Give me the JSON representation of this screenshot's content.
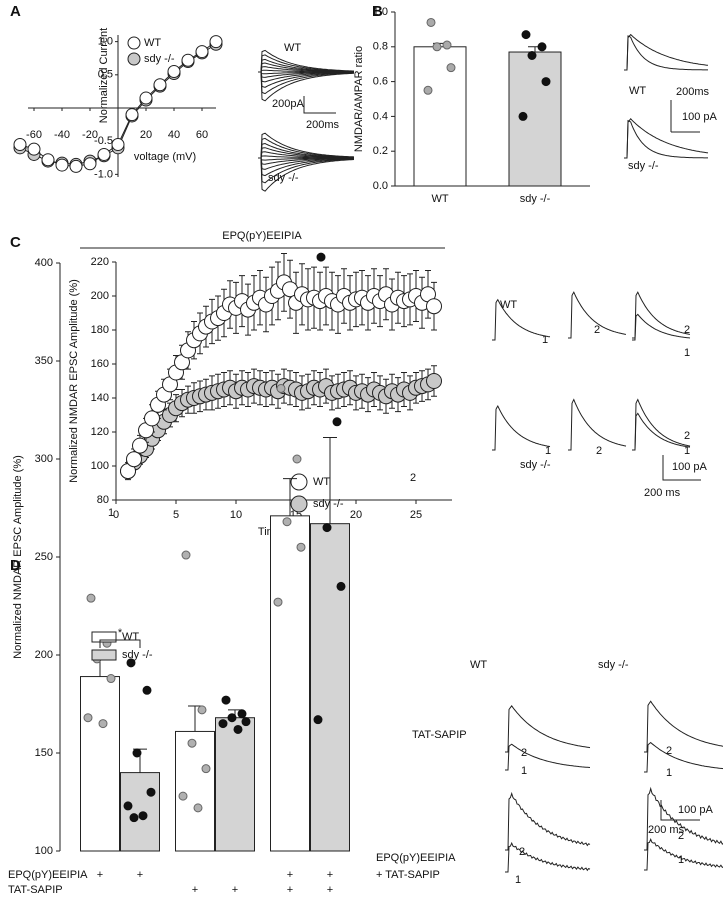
{
  "panel_labels": [
    "A",
    "B",
    "C",
    "D"
  ],
  "chart_data": [
    {
      "type": "line",
      "x_label": "voltage (mV)",
      "y_label": "Normalized Current",
      "x": [
        -70,
        -60,
        -50,
        -40,
        -30,
        -20,
        -10,
        0,
        10,
        20,
        30,
        40,
        50,
        60,
        70
      ],
      "series": [
        {
          "name": "WT",
          "color": "#ffffff",
          "values": [
            -0.55,
            -0.62,
            -0.78,
            -0.86,
            -0.88,
            -0.84,
            -0.7,
            -0.55,
            -0.1,
            0.15,
            0.35,
            0.55,
            0.72,
            0.85,
            1.0
          ]
        },
        {
          "name": "sdy -/-",
          "color": "#c8c8c8",
          "values": [
            -0.6,
            -0.7,
            -0.8,
            -0.83,
            -0.85,
            -0.8,
            -0.72,
            -0.6,
            -0.12,
            0.12,
            0.33,
            0.52,
            0.7,
            0.83,
            0.96
          ]
        }
      ],
      "xlim": [
        -70,
        70
      ],
      "ylim": [
        -1.1,
        1.1
      ],
      "xticks": [
        -60,
        -40,
        -20,
        20,
        40,
        60
      ],
      "yticks": [
        {
          "value": -1,
          "label": "-1.0"
        },
        -0.5,
        0.5,
        {
          "value": 1,
          "label": "1.0"
        }
      ]
    },
    {
      "type": "bar",
      "y_label": "NMDAR/AMPAR ratio",
      "categories": [
        "WT",
        "sdy -/-"
      ],
      "values": [
        0.8,
        0.77
      ],
      "errors": [
        0.02,
        0.03
      ],
      "colors": [
        "#ffffff",
        "#d4d4d4"
      ],
      "points": [
        [
          0.94,
          0.81,
          0.8,
          0.68,
          0.55
        ],
        [
          0.87,
          0.8,
          0.75,
          0.6,
          0.4
        ]
      ],
      "point_colors": [
        "#aaaaaa",
        "#111111"
      ],
      "ylim": [
        0,
        1
      ],
      "yticks": [
        {
          "value": 0,
          "label": "0.0"
        },
        0.2,
        0.4,
        0.6,
        0.8,
        {
          "value": 1,
          "label": "1.0"
        }
      ]
    },
    {
      "type": "scatter",
      "title": "EPQ(pY)EEIPIA",
      "x_label": "Time (min)",
      "y_label": "Normalized NMDAR EPSC Amplitude (%)",
      "annotations": [
        "1",
        "2"
      ],
      "x": [
        1,
        1.5,
        2,
        2.5,
        3,
        3.5,
        4,
        4.5,
        5,
        5.5,
        6,
        6.5,
        7,
        7.5,
        8,
        8.5,
        9,
        9.5,
        10,
        10.5,
        11,
        11.5,
        12,
        12.5,
        13,
        13.5,
        14,
        14.5,
        15,
        15.5,
        16,
        16.5,
        17,
        17.5,
        18,
        18.5,
        19,
        19.5,
        20,
        20.5,
        21,
        21.5,
        22,
        22.5,
        23,
        23.5,
        24,
        24.5,
        25,
        25.5,
        26,
        26.5
      ],
      "series": [
        {
          "name": "WT",
          "color": "#ffffff",
          "values": [
            97,
            104,
            112,
            121,
            128,
            136,
            142,
            148,
            155,
            161,
            168,
            174,
            178,
            182,
            185,
            187,
            190,
            195,
            193,
            197,
            192,
            196,
            199,
            195,
            200,
            203,
            208,
            204,
            196,
            201,
            198,
            199,
            197,
            200,
            197,
            195,
            200,
            196,
            198,
            199,
            196,
            200,
            197,
            201,
            195,
            199,
            197,
            198,
            200,
            196,
            201,
            194
          ],
          "errors": [
            5,
            6,
            6,
            7,
            8,
            8,
            9,
            9,
            10,
            10,
            11,
            11,
            12,
            12,
            13,
            13,
            14,
            14,
            15,
            15,
            15,
            16,
            16,
            16,
            17,
            17,
            17,
            17,
            18,
            18,
            18,
            18,
            17,
            17,
            17,
            17,
            16,
            16,
            16,
            16,
            16,
            16,
            15,
            15,
            15,
            15,
            15,
            15,
            15,
            15,
            14,
            14
          ]
        },
        {
          "name": "sdy -/-",
          "color": "#c8c8c8",
          "values": [
            97,
            102,
            106,
            110,
            116,
            121,
            126,
            130,
            134,
            137,
            139,
            140,
            141,
            142,
            143,
            144,
            145,
            146,
            144,
            146,
            145,
            147,
            146,
            145,
            146,
            144,
            147,
            146,
            145,
            143,
            144,
            146,
            145,
            147,
            143,
            144,
            145,
            146,
            143,
            144,
            142,
            145,
            143,
            141,
            144,
            142,
            145,
            143,
            146,
            147,
            148,
            150
          ],
          "errors": [
            4,
            4,
            5,
            5,
            6,
            6,
            7,
            7,
            8,
            8,
            8,
            9,
            9,
            9,
            10,
            10,
            10,
            10,
            10,
            10,
            10,
            10,
            10,
            10,
            10,
            10,
            10,
            10,
            10,
            10,
            10,
            10,
            10,
            10,
            10,
            10,
            10,
            10,
            10,
            10,
            10,
            10,
            10,
            10,
            10,
            10,
            10,
            10,
            9,
            9,
            9,
            9
          ]
        }
      ],
      "xlim": [
        0,
        28
      ],
      "ylim": [
        80,
        220
      ],
      "xticks": [
        0,
        5,
        10,
        15,
        20,
        25
      ],
      "yticks": [
        80,
        100,
        120,
        140,
        160,
        180,
        200,
        220
      ]
    },
    {
      "type": "bar",
      "y_label": "Normalized NMDAR EPSC Amplitude (%)",
      "categories": [
        null,
        null,
        null
      ],
      "series": [
        {
          "name": "WT",
          "color": "#ffffff",
          "values": [
            189,
            161,
            271
          ],
          "errors": [
            11,
            13,
            19
          ],
          "points": [
            [
              229,
              206,
              198,
              188,
              168,
              165
            ],
            [
              251,
              172,
              155,
              142,
              128,
              122
            ],
            [
              336,
              300,
              268,
              255,
              227
            ]
          ],
          "point_color": "#b0b0b0"
        },
        {
          "name": "sdy -/-",
          "color": "#d4d4d4",
          "values": [
            140,
            168,
            267
          ],
          "errors": [
            12,
            4,
            44
          ],
          "points": [
            [
              196,
              182,
              150,
              130,
              123,
              118,
              117
            ],
            [
              177,
              170,
              168,
              166,
              165,
              162
            ],
            [
              403,
              319,
              265,
              235,
              167
            ]
          ],
          "point_color": "#111111"
        }
      ],
      "significance": "*",
      "condition_rows": [
        {
          "label": "EPQ(pY)EEIPIA",
          "signs": [
            "+",
            "+",
            null,
            null,
            "+",
            "+"
          ]
        },
        {
          "label": "TAT-SAPIP",
          "signs": [
            null,
            null,
            "+",
            "+",
            "+",
            "+"
          ]
        }
      ],
      "ylim": [
        100,
        400
      ],
      "yticks": [
        100,
        150,
        200,
        250,
        300,
        350,
        400
      ]
    }
  ],
  "traces": {
    "A": [
      "WT",
      "sdy -/-",
      "200pA",
      "200ms"
    ],
    "B": [
      "WT",
      "200ms",
      "100 pA",
      "sdy -/-"
    ],
    "C": [
      "WT",
      "1",
      "2",
      "2",
      "1",
      "sdy -/-",
      "1",
      "2",
      "2",
      "1",
      "100 pA",
      "200 ms"
    ],
    "D": [
      "WT",
      "sdy -/-",
      "TAT-SAPIP",
      "2",
      "1",
      "2",
      "1",
      "100 pA",
      "200 ms",
      "EPQ(pY)EEIPIA",
      "+ TAT-SAPIP",
      "2",
      "1",
      "2",
      "1"
    ]
  }
}
